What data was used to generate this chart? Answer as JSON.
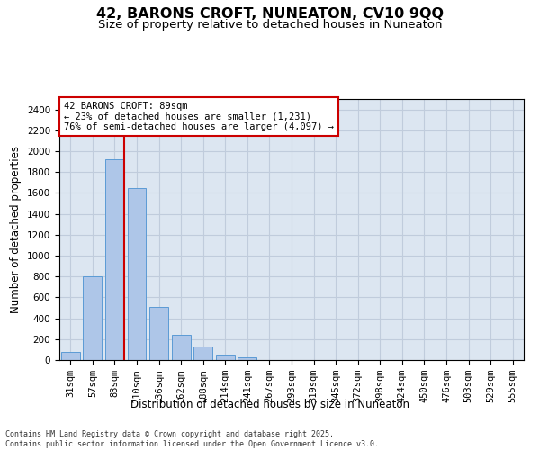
{
  "title1": "42, BARONS CROFT, NUNEATON, CV10 9QQ",
  "title2": "Size of property relative to detached houses in Nuneaton",
  "xlabel": "Distribution of detached houses by size in Nuneaton",
  "ylabel": "Number of detached properties",
  "categories": [
    "31sqm",
    "57sqm",
    "83sqm",
    "110sqm",
    "136sqm",
    "162sqm",
    "188sqm",
    "214sqm",
    "241sqm",
    "267sqm",
    "293sqm",
    "319sqm",
    "345sqm",
    "372sqm",
    "398sqm",
    "424sqm",
    "450sqm",
    "476sqm",
    "503sqm",
    "529sqm",
    "555sqm"
  ],
  "values": [
    75,
    800,
    1920,
    1650,
    510,
    240,
    130,
    50,
    30,
    0,
    0,
    0,
    0,
    0,
    0,
    0,
    0,
    0,
    0,
    0,
    0
  ],
  "bar_color": "#aec6e8",
  "bar_edge_color": "#5b9bd5",
  "vline_x": 2.425,
  "vline_color": "#cc0000",
  "annotation_text": "42 BARONS CROFT: 89sqm\n← 23% of detached houses are smaller (1,231)\n76% of semi-detached houses are larger (4,097) →",
  "annotation_box_edgecolor": "#cc0000",
  "ylim": [
    0,
    2500
  ],
  "yticks": [
    0,
    200,
    400,
    600,
    800,
    1000,
    1200,
    1400,
    1600,
    1800,
    2000,
    2200,
    2400
  ],
  "grid_color": "#c0ccdc",
  "plot_bg_color": "#dce6f1",
  "footnote": "Contains HM Land Registry data © Crown copyright and database right 2025.\nContains public sector information licensed under the Open Government Licence v3.0.",
  "title_fontsize": 11.5,
  "subtitle_fontsize": 9.5,
  "axis_label_fontsize": 8.5,
  "tick_fontsize": 7.5,
  "annotation_fontsize": 7.5,
  "footnote_fontsize": 6.0
}
